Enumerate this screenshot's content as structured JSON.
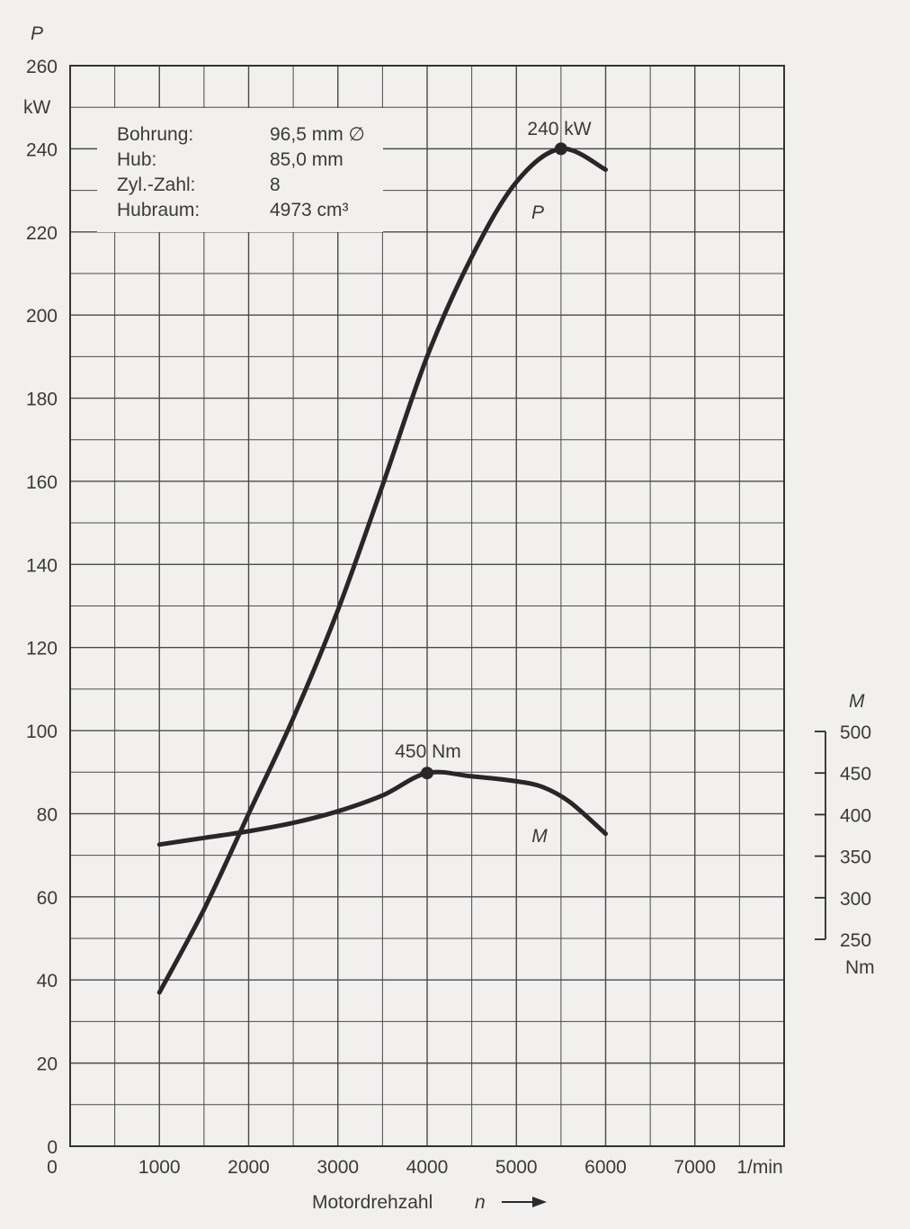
{
  "chart_data": {
    "type": "line",
    "x_axis": {
      "label": "Motordrehzahl",
      "symbol": "n",
      "unit": "1/min",
      "range": [
        0,
        8000
      ],
      "ticks": [
        "0",
        "1000",
        "2000",
        "3000",
        "4000",
        "5000",
        "6000",
        "7000"
      ]
    },
    "y_axis_left": {
      "symbol": "P",
      "unit": "kW",
      "range": [
        0,
        260
      ],
      "ticks": [
        "0",
        "20",
        "40",
        "60",
        "80",
        "100",
        "120",
        "140",
        "160",
        "180",
        "200",
        "220",
        "240",
        "260"
      ]
    },
    "y_axis_right": {
      "symbol": "M",
      "unit": "Nm",
      "range": [
        250,
        500
      ],
      "ticks": [
        "250",
        "300",
        "350",
        "400",
        "450",
        "500"
      ]
    },
    "grid": true,
    "series": [
      {
        "name": "P",
        "axis": "left",
        "points": [
          [
            1000,
            37
          ],
          [
            1500,
            57
          ],
          [
            2000,
            80
          ],
          [
            2500,
            103
          ],
          [
            3000,
            129
          ],
          [
            3500,
            159
          ],
          [
            4000,
            190
          ],
          [
            4500,
            214
          ],
          [
            5000,
            232
          ],
          [
            5500,
            240
          ],
          [
            6000,
            235
          ]
        ],
        "marker": [
          5500,
          240
        ],
        "annotation": "240 kW"
      },
      {
        "name": "M",
        "axis": "right",
        "points": [
          [
            1000,
            364
          ],
          [
            1500,
            372
          ],
          [
            2000,
            380
          ],
          [
            2500,
            390
          ],
          [
            3000,
            404
          ],
          [
            3500,
            423
          ],
          [
            4000,
            450
          ],
          [
            4500,
            446
          ],
          [
            5000,
            440
          ],
          [
            5300,
            433
          ],
          [
            5600,
            415
          ],
          [
            6000,
            377
          ]
        ],
        "marker": [
          4000,
          450
        ],
        "annotation": "450 Nm"
      }
    ],
    "info_box": [
      {
        "key": "Bohrung:",
        "value": "96,5 mm ∅"
      },
      {
        "key": "Hub:",
        "value": "85,0 mm"
      },
      {
        "key": "Zyl.-Zahl:",
        "value": "8"
      },
      {
        "key": "Hubraum:",
        "value": "4973 cm³"
      }
    ],
    "colors": {
      "curve": "#2a2628",
      "grid": "#4a4a4a",
      "background": "#f1f0ee"
    }
  }
}
